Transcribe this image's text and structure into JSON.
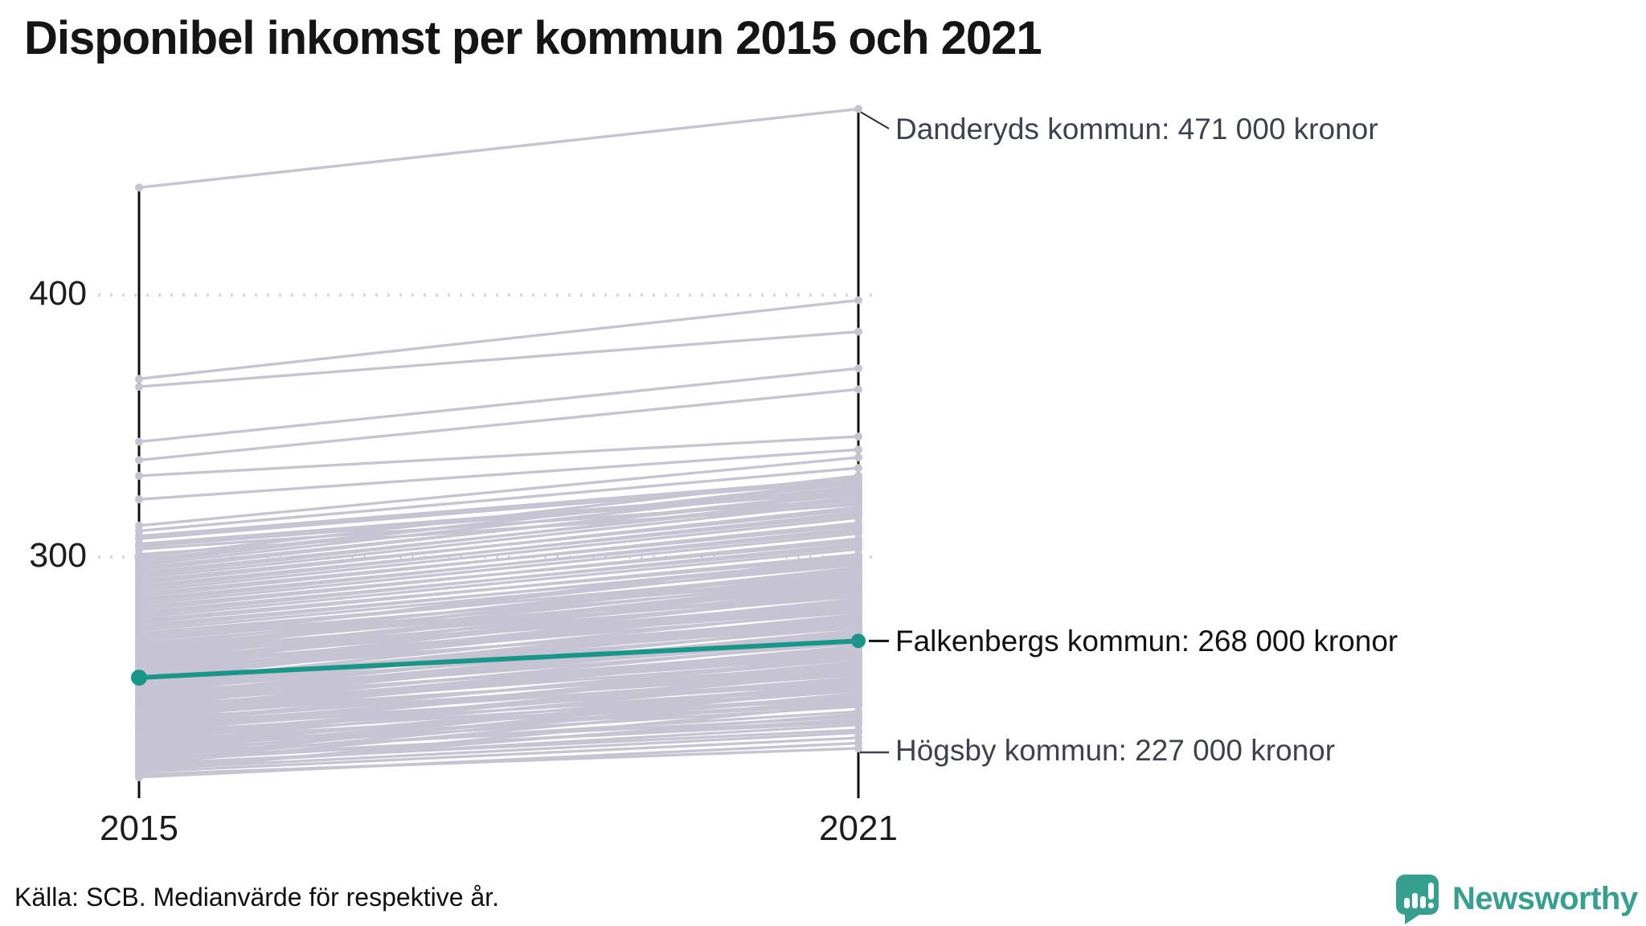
{
  "title": "Disponibel inkomst per kommun 2015 och 2021",
  "footer": {
    "source": "Källa: SCB. Medianvärde för respektive år."
  },
  "branding": {
    "wordmark": "Newsworthy",
    "icon": "speech-bubble-bar-chart-icon",
    "color": "#35a08e"
  },
  "colors": {
    "background_line": "#c6c4d2",
    "highlight": "#1a9688",
    "axis": "#101010",
    "gridline": "#d8d8d8",
    "annotation_text": "#3d4150",
    "highlight_text": "#121212"
  },
  "chart_data": {
    "type": "line",
    "subtype": "slopegraph",
    "title": "Disponibel inkomst per kommun 2015 och 2021",
    "unit": "tusen kronor",
    "x": [
      "2015",
      "2021"
    ],
    "ylim": [
      210,
      480
    ],
    "yticks": [
      400,
      300
    ],
    "ytick_labels": [
      "400",
      "300"
    ],
    "grid": "dotted horizontal lines at y ticks",
    "legend": "none",
    "highlight_series": {
      "name": "Falkenbergs kommun",
      "values": [
        254,
        268
      ],
      "color": "#1a9688"
    },
    "annotations": [
      {
        "id": "danderyd",
        "label": "Danderyds kommun: 471 000 kronor",
        "year": "2021",
        "value": 471
      },
      {
        "id": "falkenberg",
        "label": "Falkenbergs kommun: 268 000 kronor",
        "year": "2021",
        "value": 268
      },
      {
        "id": "hogsby",
        "label": "Högsby kommun: 227 000 kronor",
        "year": "2021",
        "value": 227
      }
    ],
    "background_series_estimated": [
      [
        441,
        471
      ],
      [
        368,
        398
      ],
      [
        365,
        386
      ],
      [
        344,
        372
      ],
      [
        337,
        364
      ],
      [
        331,
        346
      ],
      [
        322,
        341
      ],
      [
        312,
        338
      ],
      [
        310,
        334
      ],
      [
        308,
        330
      ],
      [
        307,
        329
      ],
      [
        305,
        326
      ],
      [
        304,
        325
      ],
      [
        303,
        322
      ],
      [
        301,
        320
      ],
      [
        216,
        229
      ],
      [
        217,
        227
      ],
      [
        218,
        231
      ],
      [
        219,
        233
      ],
      [
        220,
        236
      ],
      [
        221,
        234
      ],
      [
        222,
        238
      ],
      [
        223,
        237
      ],
      [
        224,
        241
      ],
      [
        225,
        239
      ],
      [
        226,
        243
      ],
      [
        227,
        245
      ],
      [
        228,
        244
      ],
      [
        229,
        247
      ],
      [
        230,
        246
      ],
      [
        231,
        249
      ],
      [
        232,
        251
      ],
      [
        233,
        250
      ],
      [
        234,
        253
      ],
      [
        235,
        252
      ],
      [
        236,
        255
      ],
      [
        237,
        257
      ],
      [
        238,
        256
      ],
      [
        239,
        259
      ],
      [
        240,
        258
      ],
      [
        241,
        261
      ],
      [
        242,
        263
      ],
      [
        243,
        262
      ],
      [
        244,
        265
      ],
      [
        245,
        264
      ],
      [
        246,
        267
      ],
      [
        247,
        269
      ],
      [
        248,
        268
      ],
      [
        249,
        271
      ],
      [
        250,
        270
      ],
      [
        251,
        273
      ],
      [
        252,
        275
      ],
      [
        253,
        274
      ],
      [
        255,
        277
      ],
      [
        256,
        276
      ],
      [
        257,
        279
      ],
      [
        258,
        281
      ],
      [
        259,
        280
      ],
      [
        260,
        283
      ],
      [
        261,
        282
      ],
      [
        262,
        285
      ],
      [
        263,
        287
      ],
      [
        264,
        286
      ],
      [
        265,
        289
      ],
      [
        266,
        288
      ],
      [
        267,
        291
      ],
      [
        268,
        293
      ],
      [
        269,
        292
      ],
      [
        270,
        295
      ],
      [
        271,
        294
      ],
      [
        272,
        297
      ],
      [
        273,
        299
      ],
      [
        274,
        298
      ],
      [
        275,
        301
      ],
      [
        276,
        300
      ],
      [
        277,
        303
      ],
      [
        278,
        305
      ],
      [
        279,
        304
      ],
      [
        280,
        307
      ],
      [
        281,
        306
      ],
      [
        282,
        309
      ],
      [
        283,
        311
      ],
      [
        284,
        310
      ],
      [
        285,
        313
      ],
      [
        286,
        312
      ],
      [
        287,
        315
      ],
      [
        288,
        317
      ],
      [
        289,
        316
      ],
      [
        290,
        319
      ],
      [
        291,
        318
      ],
      [
        292,
        321
      ],
      [
        293,
        323
      ],
      [
        294,
        322
      ],
      [
        295,
        325
      ],
      [
        296,
        324
      ],
      [
        297,
        327
      ],
      [
        298,
        329
      ],
      [
        299,
        328
      ],
      [
        300,
        331
      ],
      [
        222,
        248
      ],
      [
        226,
        250
      ],
      [
        231,
        257
      ],
      [
        236,
        262
      ],
      [
        241,
        266
      ],
      [
        246,
        272
      ],
      [
        251,
        278
      ],
      [
        256,
        284
      ],
      [
        261,
        290
      ],
      [
        266,
        296
      ],
      [
        224,
        252
      ],
      [
        229,
        254
      ],
      [
        234,
        260
      ],
      [
        239,
        264
      ],
      [
        244,
        270
      ],
      [
        249,
        276
      ],
      [
        254,
        282
      ],
      [
        259,
        286
      ],
      [
        264,
        292
      ],
      [
        269,
        298
      ],
      [
        218,
        244
      ],
      [
        221,
        246
      ],
      [
        223,
        250
      ],
      [
        225,
        247
      ],
      [
        227,
        252
      ],
      [
        230,
        256
      ],
      [
        232,
        254
      ],
      [
        235,
        258
      ],
      [
        237,
        261
      ],
      [
        240,
        265
      ],
      [
        242,
        268
      ],
      [
        245,
        271
      ],
      [
        247,
        274
      ],
      [
        250,
        277
      ],
      [
        252,
        280
      ],
      [
        255,
        283
      ],
      [
        257,
        286
      ],
      [
        260,
        288
      ],
      [
        262,
        291
      ],
      [
        265,
        294
      ],
      [
        219,
        240
      ],
      [
        228,
        249
      ],
      [
        233,
        259
      ],
      [
        238,
        266
      ],
      [
        243,
        272
      ],
      [
        248,
        278
      ],
      [
        253,
        284
      ],
      [
        258,
        290
      ],
      [
        263,
        296
      ],
      [
        268,
        300
      ]
    ]
  }
}
